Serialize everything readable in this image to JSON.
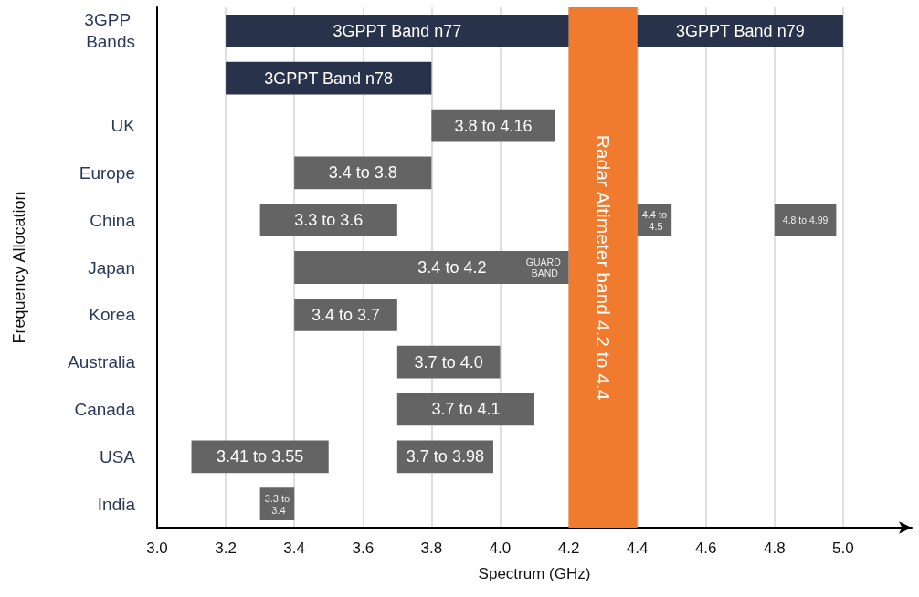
{
  "chart_data": {
    "type": "bar",
    "orientation": "horizontal",
    "xlabel": "Spectrum (GHz)",
    "ylabel": "Frequency Allocation",
    "categories": [
      "3GPP Bands",
      null,
      "UK",
      "Europe",
      "China",
      "Japan",
      "Korea",
      "Australia",
      "Canada",
      "USA",
      "India"
    ],
    "xlim": [
      3.0,
      5.2
    ],
    "xticks": [
      {
        "value": 3,
        "label": "3.0"
      },
      3.2,
      3.4,
      3.6,
      3.8,
      {
        "value": 4,
        "label": "4.0"
      },
      4.2,
      4.4,
      4.6,
      4.8,
      {
        "value": 5,
        "label": "5.0"
      }
    ],
    "grid": "x",
    "series": [
      {
        "color": "#28324a",
        "base": [
          3.2,
          3.2,
          null,
          null,
          null,
          null,
          null,
          null,
          null,
          null,
          null
        ],
        "values": [
          1.0,
          0.6,
          null,
          null,
          null,
          null,
          null,
          null,
          null,
          null,
          null
        ]
      },
      {
        "color": "#28324a",
        "base": [
          4.4,
          null,
          null,
          null,
          null,
          null,
          null,
          null,
          null,
          null,
          null
        ],
        "values": [
          0.6,
          null,
          null,
          null,
          null,
          null,
          null,
          null,
          null,
          null,
          null
        ]
      },
      {
        "color": "#646464",
        "base": [
          null,
          null,
          3.8,
          3.4,
          3.3,
          3.4,
          3.4,
          3.7,
          3.7,
          3.1,
          3.3
        ],
        "values": [
          null,
          null,
          0.36,
          0.4,
          0.4,
          0.8,
          0.3,
          0.3,
          0.4,
          0.4,
          0.1
        ]
      },
      {
        "color": "#646464",
        "base": [
          null,
          null,
          null,
          null,
          4.4,
          null,
          null,
          null,
          null,
          3.7,
          null
        ],
        "values": [
          null,
          null,
          null,
          null,
          0.1,
          null,
          null,
          null,
          null,
          0.28,
          null
        ]
      },
      {
        "color": "#646464",
        "base": [
          null,
          null,
          null,
          null,
          4.8,
          null,
          null,
          null,
          null,
          null,
          null
        ],
        "values": [
          null,
          null,
          null,
          null,
          0.18,
          null,
          null,
          null,
          null,
          null,
          null
        ]
      }
    ],
    "bands": [
      {
        "axis": "x",
        "from": 4.2,
        "to": 4.4,
        "label": "Radar Altimeter band 4.2 to 4.4",
        "color": "#f07a2e"
      }
    ],
    "annotations": [
      {
        "text": "3GPPT Band n77",
        "x": 3.7,
        "y": "3GPP Bands"
      },
      {
        "text": "3GPPT Band n79",
        "x": 4.7,
        "y": "3GPP Bands"
      },
      "3GPPT Band n78",
      {
        "text": "3.8 to 4.16",
        "x": 3.98,
        "y": "UK"
      },
      {
        "text": "3.4 to 3.8",
        "x": 3.6,
        "y": "Europe"
      },
      {
        "text": "3.3 to 3.6",
        "x": 3.5,
        "y": "China"
      },
      {
        "text": "4.4 to 4.5",
        "x": 4.45,
        "y": "China"
      },
      {
        "text": "4.8 to 4.99",
        "x": 4.89,
        "y": "China"
      },
      {
        "text": "3.4 to 4.2",
        "x": 3.86,
        "y": "Japan"
      },
      {
        "text": "GUARD BAND",
        "x": 4.13,
        "y": "Japan"
      },
      {
        "text": "3.4 to 3.7",
        "x": 3.55,
        "y": "Korea"
      },
      {
        "text": "3.7 to 4.0",
        "x": 3.85,
        "y": "Australia"
      },
      {
        "text": "3.7 to 4.1",
        "x": 3.9,
        "y": "Canada"
      },
      {
        "text": "3.41 to 3.55",
        "x": 3.3,
        "y": "USA"
      },
      {
        "text": "3.7 to 3.98",
        "x": 3.84,
        "y": "USA"
      },
      {
        "text": "3.3 to 3.4",
        "x": 3.35,
        "y": "India"
      }
    ]
  }
}
